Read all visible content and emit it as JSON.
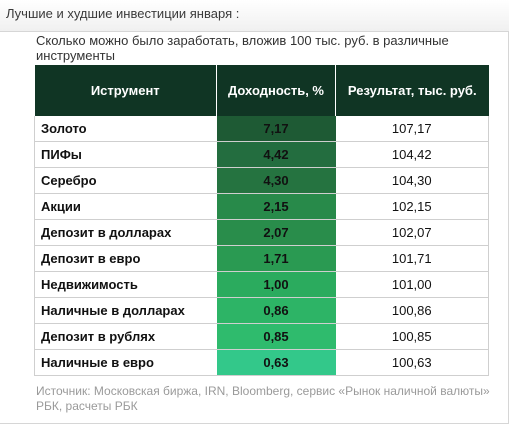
{
  "header": {
    "title": "Лучшие и худшие инвестиции января :"
  },
  "subtitle": "Сколько можно было заработать, вложив 100 тыс. руб. в различные инструменты",
  "table": {
    "columns": [
      "Иструмент",
      "Доходность, %",
      "Результат, тыс. руб."
    ],
    "rows": [
      {
        "name": "Золото",
        "yield": "7,17",
        "result": "107,17",
        "color": "#1e5a34"
      },
      {
        "name": "ПИФы",
        "yield": "4,42",
        "result": "104,42",
        "color": "#236d3f"
      },
      {
        "name": "Серебро",
        "yield": "4,30",
        "result": "104,30",
        "color": "#257340"
      },
      {
        "name": "Акции",
        "yield": "2,15",
        "result": "102,15",
        "color": "#288a4a"
      },
      {
        "name": "Депозит в долларах",
        "yield": "2,07",
        "result": "102,07",
        "color": "#298d4b"
      },
      {
        "name": "Депозит в евро",
        "yield": "1,71",
        "result": "101,71",
        "color": "#2a9a52"
      },
      {
        "name": "Недвижимость",
        "yield": "1,00",
        "result": "101,00",
        "color": "#2bab5e"
      },
      {
        "name": "Наличные в долларах",
        "yield": "0,86",
        "result": "100,86",
        "color": "#2db466"
      },
      {
        "name": "Депозит в рублях",
        "yield": "0,85",
        "result": "100,85",
        "color": "#2fbb6d"
      },
      {
        "name": "Наличные в евро",
        "yield": "0,63",
        "result": "100,63",
        "color": "#33c88a"
      }
    ]
  },
  "source": "Источник: Московская биржа, IRN, Bloomberg, сервис «Рынок наличной валюты» РБК, расчеты РБК",
  "chart_data": {
    "type": "table",
    "title": "Лучшие и худшие инвестиции января :",
    "columns": [
      "Иструмент",
      "Доходность, %",
      "Результат, тыс. руб."
    ],
    "categories": [
      "Золото",
      "ПИФы",
      "Серебро",
      "Акции",
      "Депозит в долларах",
      "Депозит в евро",
      "Недвижимость",
      "Наличные в долларах",
      "Депозит в рублях",
      "Наличные в евро"
    ],
    "series": [
      {
        "name": "Доходность, %",
        "values": [
          7.17,
          4.42,
          4.3,
          2.15,
          2.07,
          1.71,
          1.0,
          0.86,
          0.85,
          0.63
        ]
      },
      {
        "name": "Результат, тыс. руб.",
        "values": [
          107.17,
          104.42,
          104.3,
          102.15,
          102.07,
          101.71,
          101.0,
          100.86,
          100.85,
          100.63
        ]
      }
    ]
  }
}
